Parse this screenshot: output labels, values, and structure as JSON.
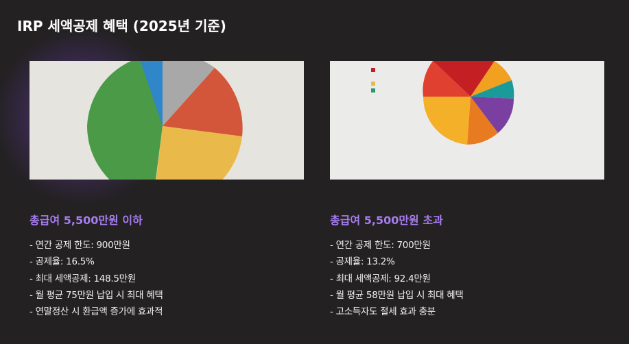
{
  "header": {
    "title": "IRP 세액공제 혜택 (2025년 기준)"
  },
  "columns": [
    {
      "heading": "총급여 5,500만원 이하",
      "items": [
        "- 연간 공제 한도: 900만원",
        "- 공제율: 16.5%",
        "- 최대 세액공제: 148.5만원",
        "- 월 평균 75만원 납입 시 최대 혜택",
        "- 연말정산 시 환급액 증가에 효과적"
      ]
    },
    {
      "heading": "총급여 5,500만원 초과",
      "items": [
        "- 연간 공제 한도: 700만원",
        "- 공제율: 13.2%",
        "- 최대 세액공제: 92.4만원",
        "- 월 평균 58만원 납입 시 최대 혜택",
        "- 고소득자도 절세 효과 충분"
      ]
    }
  ]
}
